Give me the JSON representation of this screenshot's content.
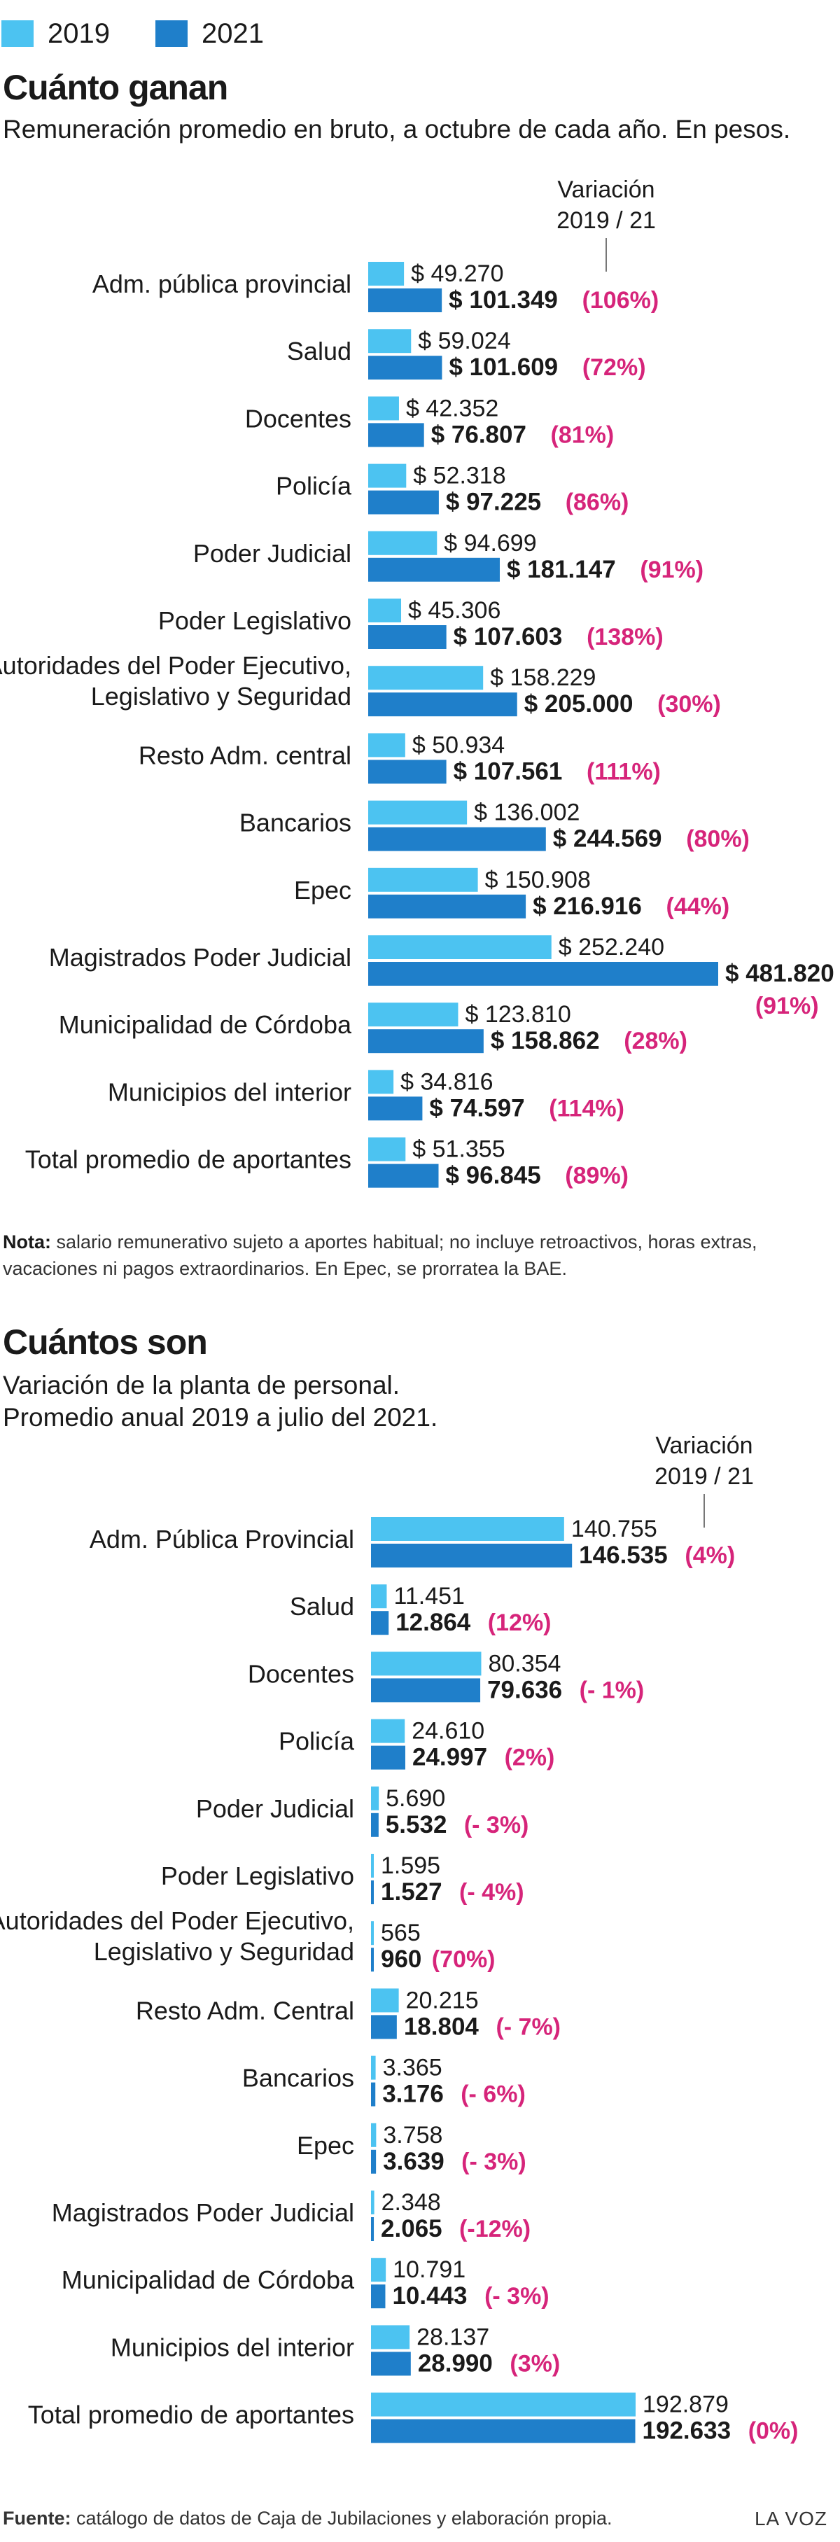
{
  "colors": {
    "y2019": "#4cc3f1",
    "y2021": "#1f7fca",
    "variation": "#d6247a",
    "text": "#1a1a1a"
  },
  "legend": {
    "a": "2019",
    "b": "2021"
  },
  "charts": [
    {
      "title": "Cuánto ganan",
      "subtitle": [
        "Remuneración promedio en bruto, a octubre de cada año. En pesos."
      ],
      "variation_header": [
        "Variación",
        "2019 / 21"
      ],
      "note_label": "Nota:",
      "note_text": [
        "salario remunerativo sujeto a aportes habitual; no incluye retroactivos, horas extras,",
        "vacaciones ni pagos extraordinarios. En Epec, se prorratea la BAE."
      ]
    },
    {
      "title": "Cuántos son",
      "subtitle": [
        "Variación de la planta de personal.",
        "Promedio anual 2019 a julio del 2021."
      ],
      "variation_header": [
        "Variación",
        "2019 / 21"
      ]
    }
  ],
  "chart_data": [
    {
      "type": "bar",
      "title": "Cuánto ganan",
      "categories": [
        [
          "Adm. pública provincial"
        ],
        [
          "Salud"
        ],
        [
          "Docentes"
        ],
        [
          "Policía"
        ],
        [
          "Poder Judicial"
        ],
        [
          "Poder Legislativo"
        ],
        [
          "Autoridades del Poder Ejecutivo,",
          "Legislativo y Seguridad"
        ],
        [
          "Resto Adm. central"
        ],
        [
          "Bancarios"
        ],
        [
          "Epec"
        ],
        [
          "Magistrados Poder Judicial"
        ],
        [
          "Municipalidad de Córdoba"
        ],
        [
          "Municipios del interior"
        ],
        [
          "Total promedio de aportantes"
        ]
      ],
      "series": [
        {
          "name": "2019",
          "values": [
            49270,
            59024,
            42352,
            52318,
            94699,
            45306,
            158229,
            50934,
            136002,
            150908,
            252240,
            123810,
            34816,
            51355
          ]
        },
        {
          "name": "2021",
          "values": [
            101349,
            101609,
            76807,
            97225,
            181147,
            107603,
            205000,
            107561,
            244569,
            216916,
            481820,
            158862,
            74597,
            96845
          ]
        }
      ],
      "labels_2019": [
        "$ 49.270",
        "$ 59.024",
        "$ 42.352",
        "$ 52.318",
        "$ 94.699",
        "$ 45.306",
        "$ 158.229",
        "$ 50.934",
        "$ 136.002",
        "$ 150.908",
        "$ 252.240",
        "$ 123.810",
        "$ 34.816",
        "$ 51.355"
      ],
      "labels_2021": [
        "$ 101.349",
        "$ 101.609",
        "$ 76.807",
        "$ 97.225",
        "$ 181.147",
        "$ 107.603",
        "$ 205.000",
        "$ 107.561",
        "$ 244.569",
        "$ 216.916",
        "$ 481.820",
        "$ 158.862",
        "$ 74.597",
        "$ 96.845"
      ],
      "variation": [
        "(106%)",
        "(72%)",
        "(81%)",
        "(86%)",
        "(91%)",
        "(138%)",
        "(30%)",
        "(111%)",
        "(80%)",
        "(44%)",
        "(91%)",
        "(28%)",
        "(114%)",
        "(89%)"
      ]
    },
    {
      "type": "bar",
      "title": "Cuántos son",
      "categories": [
        [
          "Adm. Pública Provincial"
        ],
        [
          "Salud"
        ],
        [
          "Docentes"
        ],
        [
          "Policía"
        ],
        [
          "Poder Judicial"
        ],
        [
          "Poder Legislativo"
        ],
        [
          "Autoridades del Poder Ejecutivo,",
          "Legislativo y Seguridad"
        ],
        [
          "Resto Adm. Central"
        ],
        [
          "Bancarios"
        ],
        [
          "Epec"
        ],
        [
          "Magistrados Poder Judicial"
        ],
        [
          "Municipalidad de Córdoba"
        ],
        [
          "Municipios del interior"
        ],
        [
          "Total promedio de aportantes"
        ]
      ],
      "series": [
        {
          "name": "2019",
          "values": [
            140755,
            11451,
            80354,
            24610,
            5690,
            1595,
            565,
            20215,
            3365,
            3758,
            2348,
            10791,
            28137,
            192879
          ]
        },
        {
          "name": "2021",
          "values": [
            146535,
            12864,
            79636,
            24997,
            5532,
            1527,
            960,
            18804,
            3176,
            3639,
            2065,
            10443,
            28990,
            192633
          ]
        }
      ],
      "labels_2019": [
        "140.755",
        "11.451",
        "80.354",
        "24.610",
        "5.690",
        "1.595",
        "565",
        "20.215",
        "3.365",
        "3.758",
        "2.348",
        "10.791",
        "28.137",
        "192.879"
      ],
      "labels_2021": [
        "146.535",
        "12.864",
        "79.636",
        "24.997",
        "5.532",
        "1.527",
        "960",
        "18.804",
        "3.176",
        "3.639",
        "2.065",
        "10.443",
        "28.990",
        "192.633"
      ],
      "variation": [
        "(4%)",
        "(12%)",
        "(- 1%)",
        "(2%)",
        "(- 3%)",
        "(- 4%)",
        "(70%)",
        "(- 7%)",
        "(- 6%)",
        "(- 3%)",
        "(-12%)",
        "(- 3%)",
        "(3%)",
        "(0%)"
      ]
    }
  ],
  "footer": {
    "source_label": "Fuente:",
    "source_text": "catálogo de datos de Caja de Jubilaciones y elaboración propia.",
    "brand": "LA VOZ"
  }
}
